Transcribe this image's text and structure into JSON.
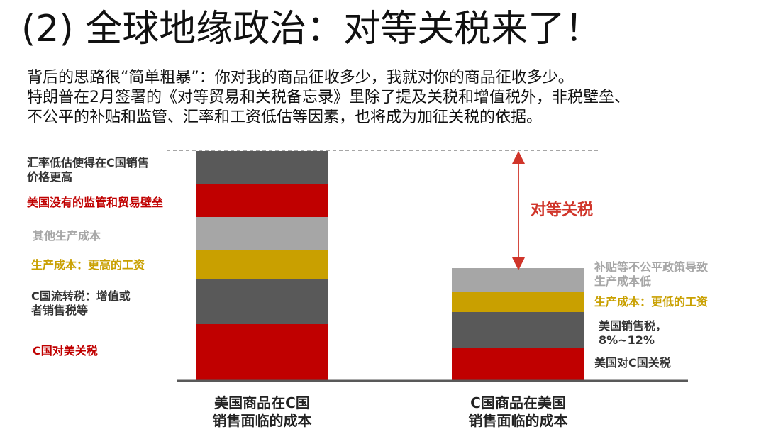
{
  "title": "(2) 全球地缘政治：对等关税来了！",
  "intro": [
    "背后的思路很“简单粗暴”：你对我的商品征收多少，我就对你的商品征收多少。",
    "特朗普在2月签署的《对等贸易和关税备忘录》里除了提及关税和增值税外，非税壁垒、",
    "不公平的补贴和监管、汇率和工资低估等因素，也将成为加征关税的依据。"
  ],
  "colors": {
    "red": "#c00000",
    "dark": "#595959",
    "gray": "#a6a6a6",
    "gold": "#c9a000",
    "arrow": "#d0352a"
  },
  "left_bar": {
    "caption": [
      "美国商品在C国",
      "销售面临的成本"
    ],
    "segments": [
      {
        "label": [
          "C国对美关税"
        ],
        "color": "red",
        "label_style": "red"
      },
      {
        "label": [
          "C国流转税：增值或",
          "者销售税等"
        ],
        "color": "dark",
        "label_style": "dark"
      },
      {
        "label": [
          "生产成本：更高的工资"
        ],
        "color": "gold",
        "label_style": "gold"
      },
      {
        "label": [
          "其他生产成本"
        ],
        "color": "gray",
        "label_style": "gray"
      },
      {
        "label": [
          "美国没有的监管和贸易壁垒"
        ],
        "color": "red",
        "label_style": "red"
      },
      {
        "label": [
          "汇率低估使得在C国销售",
          "价格更高"
        ],
        "color": "dark",
        "label_style": "dark"
      }
    ]
  },
  "right_bar": {
    "caption": [
      "C国商品在美国",
      "销售面临的成本"
    ],
    "segments": [
      {
        "label": [
          "美国对C国关税"
        ],
        "color": "red",
        "label_style": "dark"
      },
      {
        "label": [
          "美国销售税，",
          "8%~12%"
        ],
        "color": "dark",
        "label_style": "dark"
      },
      {
        "label": [
          "生产成本：更低的工资"
        ],
        "color": "gold",
        "label_style": "gold"
      },
      {
        "label": [
          "补贴等不公平政策导致",
          "生产成本低"
        ],
        "color": "gray",
        "label_style": "gray"
      }
    ]
  },
  "gap_label": "对等关税"
}
